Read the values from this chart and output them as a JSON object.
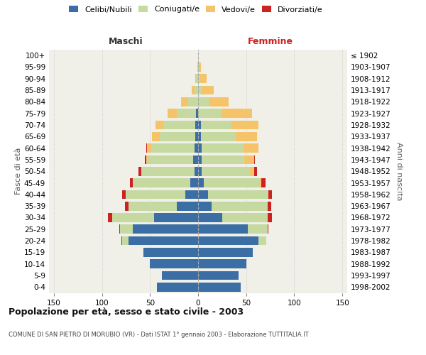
{
  "age_groups": [
    "0-4",
    "5-9",
    "10-14",
    "15-19",
    "20-24",
    "25-29",
    "30-34",
    "35-39",
    "40-44",
    "45-49",
    "50-54",
    "55-59",
    "60-64",
    "65-69",
    "70-74",
    "75-79",
    "80-84",
    "85-89",
    "90-94",
    "95-99",
    "100+"
  ],
  "birth_years": [
    "1998-2002",
    "1993-1997",
    "1988-1992",
    "1983-1987",
    "1978-1982",
    "1973-1977",
    "1968-1972",
    "1963-1967",
    "1958-1962",
    "1953-1957",
    "1948-1952",
    "1943-1947",
    "1938-1942",
    "1933-1937",
    "1928-1932",
    "1923-1927",
    "1918-1922",
    "1913-1917",
    "1908-1912",
    "1903-1907",
    "≤ 1902"
  ],
  "male_celibi": [
    43,
    38,
    50,
    57,
    72,
    68,
    46,
    22,
    13,
    8,
    4,
    5,
    4,
    3,
    3,
    2,
    0,
    0,
    0,
    0,
    0
  ],
  "male_coniugati": [
    0,
    0,
    0,
    0,
    7,
    13,
    43,
    50,
    62,
    60,
    55,
    47,
    45,
    37,
    33,
    20,
    10,
    4,
    2,
    1,
    0
  ],
  "male_vedovi": [
    0,
    0,
    0,
    0,
    0,
    0,
    0,
    0,
    0,
    0,
    0,
    2,
    4,
    8,
    8,
    10,
    8,
    3,
    1,
    0,
    0
  ],
  "male_divorziati": [
    0,
    0,
    0,
    0,
    1,
    1,
    5,
    4,
    4,
    3,
    3,
    1,
    1,
    0,
    0,
    0,
    0,
    0,
    0,
    0,
    0
  ],
  "female_celibi": [
    44,
    42,
    50,
    57,
    63,
    52,
    25,
    14,
    10,
    6,
    4,
    4,
    4,
    3,
    3,
    0,
    0,
    0,
    0,
    0,
    0
  ],
  "female_coniugati": [
    0,
    0,
    0,
    0,
    8,
    20,
    47,
    58,
    63,
    58,
    50,
    44,
    43,
    36,
    32,
    24,
    12,
    4,
    2,
    1,
    0
  ],
  "female_vedovi": [
    0,
    0,
    0,
    0,
    0,
    0,
    0,
    0,
    0,
    2,
    4,
    10,
    16,
    22,
    28,
    32,
    20,
    12,
    7,
    2,
    0
  ],
  "female_divorziati": [
    0,
    0,
    0,
    0,
    0,
    1,
    5,
    4,
    4,
    4,
    3,
    1,
    0,
    0,
    0,
    0,
    0,
    0,
    0,
    0,
    0
  ],
  "colors": {
    "celibi": "#3a6ea5",
    "coniugati": "#c5d9a0",
    "vedovi": "#f5c36a",
    "divorziati": "#cc2222"
  },
  "xlim": 155,
  "xticks": [
    -150,
    -100,
    -50,
    0,
    50,
    100,
    150
  ],
  "title": "Popolazione per età, sesso e stato civile - 2003",
  "subtitle": "COMUNE DI SAN PIETRO DI MORUBIO (VR) - Dati ISTAT 1° gennaio 2003 - Elaborazione TUTTITALIA.IT",
  "ylabel_left": "Fasce di età",
  "ylabel_right": "Anni di nascita",
  "label_maschi": "Maschi",
  "label_femmine": "Femmine",
  "legend_labels": [
    "Celibi/Nubili",
    "Coniugati/e",
    "Vedovi/e",
    "Divorziati/e"
  ],
  "bg_color": "#ffffff",
  "plot_bg": "#f0f0e8"
}
